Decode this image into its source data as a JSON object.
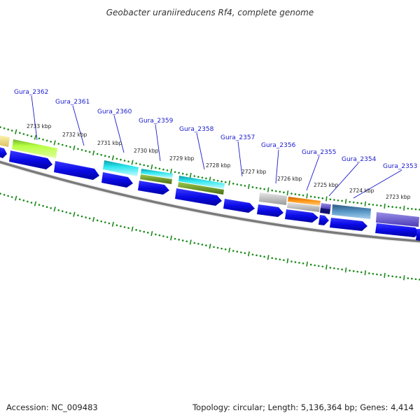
{
  "title": "Geobacter uraniireducens Rf4, complete genome",
  "footer": {
    "accession": "Accession: NC_009483",
    "summary": "Topology: circular; Length: 5,136,364 bp; Genes: 4,414"
  },
  "kbp_ticks": [
    "2733 kbp",
    "2732 kbp",
    "2731 kbp",
    "2730 kbp",
    "2729 kbp",
    "2728 kbp",
    "2727 kbp",
    "2726 kbp",
    "2725 kbp",
    "2724 kbp",
    "2723 kbp"
  ],
  "gene_labels": [
    "Gura_2362",
    "Gura_2361",
    "Gura_2360",
    "Gura_2359",
    "Gura_2358",
    "Gura_2357",
    "Gura_2356",
    "Gura_2355",
    "Gura_2354",
    "Gura_2353"
  ],
  "colors": {
    "cds": "#1010e8",
    "outer_ticks": "#1a8a1a",
    "backbone": "#777777",
    "label": "#1a1acc"
  }
}
